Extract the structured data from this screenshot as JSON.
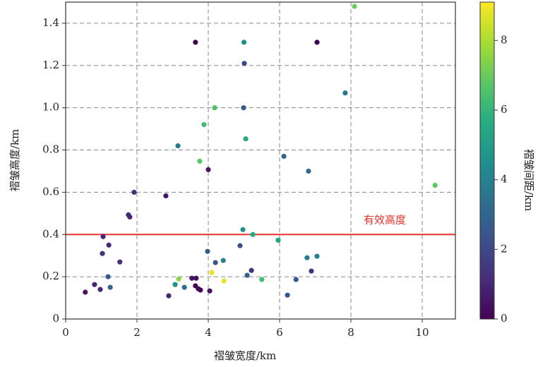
{
  "chart_data": {
    "type": "scatter",
    "xlabel": "褶皱宽度/km",
    "ylabel": "褶皱高度/km",
    "x": [
      3.64,
      5.0,
      7.05,
      5.01,
      8.1,
      7.84,
      4.18,
      4.99,
      3.88,
      5.05,
      3.15,
      6.12,
      3.76,
      4.0,
      6.81,
      10.36,
      1.92,
      2.81,
      1.76,
      1.8,
      4.97,
      5.25,
      1.05,
      5.96,
      4.89,
      1.21,
      3.98,
      1.03,
      7.05,
      6.77,
      4.42,
      4.2,
      1.52,
      5.21,
      4.1,
      6.89,
      5.09,
      1.19,
      6.46,
      3.17,
      5.5,
      4.44,
      3.54,
      3.66,
      0.81,
      3.07,
      1.25,
      3.33,
      3.64,
      3.72,
      3.78,
      0.97,
      4.04,
      0.55,
      2.89,
      6.22
    ],
    "y": [
      1.31,
      1.31,
      1.31,
      1.21,
      1.48,
      1.07,
      1.0,
      1.0,
      0.92,
      0.853,
      0.82,
      0.77,
      0.747,
      0.707,
      0.7,
      0.633,
      0.6,
      0.583,
      0.493,
      0.483,
      0.423,
      0.4,
      0.39,
      0.373,
      0.347,
      0.35,
      0.32,
      0.31,
      0.297,
      0.29,
      0.277,
      0.267,
      0.27,
      0.23,
      0.22,
      0.227,
      0.207,
      0.2,
      0.187,
      0.19,
      0.187,
      0.18,
      0.193,
      0.193,
      0.163,
      0.163,
      0.15,
      0.15,
      0.157,
      0.143,
      0.137,
      0.14,
      0.133,
      0.127,
      0.11,
      0.113
    ],
    "c": [
      0,
      4.5,
      0,
      2,
      7,
      3.5,
      6.5,
      2.5,
      6.3,
      5.5,
      3.8,
      3,
      6.8,
      0.5,
      3.2,
      6.8,
      1.2,
      0.5,
      1,
      1,
      4.5,
      5.5,
      1,
      5.3,
      2.2,
      1,
      2.8,
      1.2,
      4,
      3.8,
      4,
      2.2,
      1.2,
      1.3,
      8.8,
      1.3,
      2.8,
      2.5,
      2.6,
      7.5,
      6.3,
      8.8,
      0.5,
      0.3,
      1,
      4.5,
      3,
      3.2,
      0,
      0.2,
      0,
      1,
      0.5,
      0.5,
      1,
      2.5
    ],
    "xlim": [
      0,
      10.93
    ],
    "xticks": [
      0,
      2,
      4,
      6,
      8,
      10
    ],
    "ylim": [
      0,
      1.5
    ],
    "yticks": [
      {
        "value": 0,
        "label": "0"
      },
      {
        "value": 0.2,
        "label": "0.2"
      },
      {
        "value": 0.4,
        "label": "0.4"
      },
      {
        "value": 0.6,
        "label": "0.6"
      },
      {
        "value": 0.8,
        "label": "0.8"
      },
      {
        "value": 1,
        "label": "1.0"
      },
      {
        "value": 1.2,
        "label": "1.2"
      },
      {
        "value": 1.4,
        "label": "1.4"
      }
    ],
    "grid": true,
    "colormap": "viridis",
    "colorbar": {
      "label": "褶皱间距/km",
      "lim": [
        0,
        9.1
      ],
      "ticks": [
        0,
        2,
        4,
        6,
        8
      ]
    },
    "reference_line": {
      "value": 0.4,
      "color": "#e8312a",
      "label": "有效高度"
    }
  }
}
